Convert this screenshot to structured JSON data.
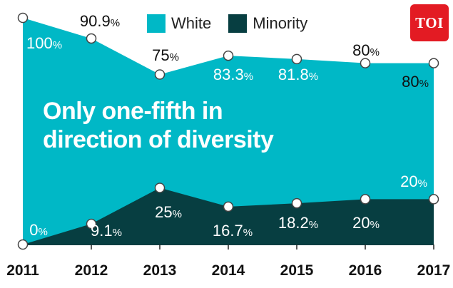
{
  "colors": {
    "white": "#00b8c6",
    "minority": "#073e41",
    "accent_logo": "#e31b23"
  },
  "legend": [
    {
      "label": "White",
      "color": "#00b8c6"
    },
    {
      "label": "Minority",
      "color": "#073e41"
    }
  ],
  "logo": {
    "text": "TOI"
  },
  "headline": {
    "line1": "Only one-fifth in",
    "line2": "direction of diversity"
  },
  "chart_data": {
    "type": "area",
    "x": [
      "2011",
      "2012",
      "2013",
      "2014",
      "2015",
      "2016",
      "2017"
    ],
    "ylim": [
      0,
      100
    ],
    "grid": false,
    "legend_position": "top",
    "series": [
      {
        "name": "White",
        "values": [
          100,
          90.9,
          75,
          83.3,
          81.8,
          80,
          80
        ],
        "labels": [
          "100%",
          "90.9%",
          "75%",
          "83.3%",
          "81.8%",
          "80%",
          "80%"
        ]
      },
      {
        "name": "Minority",
        "values": [
          0,
          9.1,
          25,
          16.7,
          18.2,
          20,
          20
        ],
        "labels": [
          "0%",
          "9.1%",
          "25%",
          "16.7%",
          "18.2%",
          "20%",
          "20%"
        ]
      }
    ]
  }
}
